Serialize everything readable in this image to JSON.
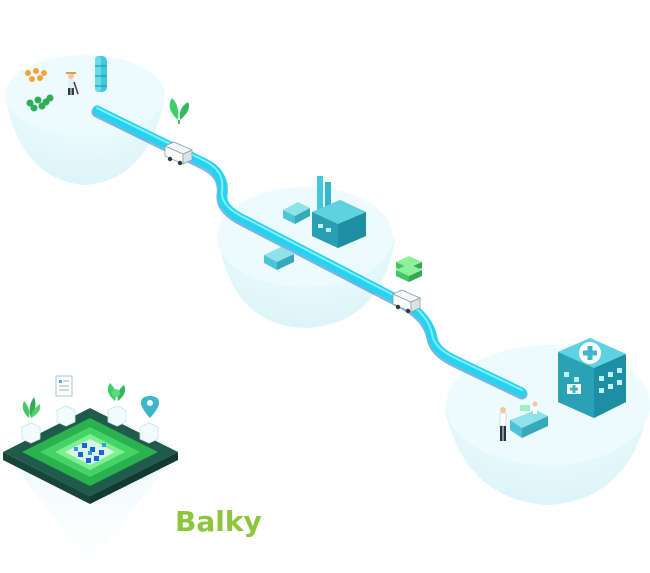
{
  "brand": {
    "name": "Balky",
    "color": "#8cc63f"
  },
  "palette": {
    "conveyor": "#21d4f2",
    "conveyor_dark": "#0b7fc4",
    "platform_fill": "#e8f9fc",
    "platform_edge": "#cdeff6",
    "building": "#3cb7c9",
    "building_dark": "#1e8ea3",
    "green": "#3ccf6a",
    "hub_dark": "#1f5a4a"
  },
  "icons": {
    "farm": "farm-icon",
    "storage_tank": "storage-tank-icon",
    "plant_sprout": "plant-sprout-icon",
    "delivery_truck": "delivery-truck-icon",
    "factory": "factory-icon",
    "crate": "crate-icon",
    "stacked_boxes": "stacked-boxes-icon",
    "hospital": "hospital-icon",
    "pharmacy_counter": "pharmacy-counter-icon",
    "data_hub": "data-hub-icon",
    "location_pin": "location-pin-icon",
    "document": "document-icon",
    "leaf": "leaf-icon"
  }
}
